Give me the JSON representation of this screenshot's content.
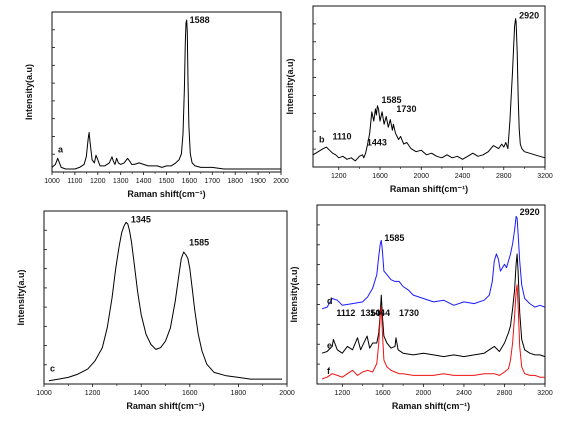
{
  "chart_data": [
    {
      "panel_label": "a",
      "type": "line",
      "xlabel": "Raman shift(cm⁻¹)",
      "ylabel": "Intensity(a.u)",
      "xlim": [
        1000,
        2000
      ],
      "xticks": [
        "1000",
        "1100",
        "1200",
        "1300",
        "1400",
        "1500",
        "1600",
        "1700",
        "1800",
        "1900",
        "2000"
      ],
      "yticks_labeled": false,
      "annotations": [
        {
          "text": "1588",
          "x": 1588,
          "y": 0.96
        }
      ],
      "series": [
        {
          "color": "#000000",
          "x": [
            1000,
            1015,
            1025,
            1040,
            1060,
            1080,
            1100,
            1120,
            1140,
            1150,
            1158,
            1162,
            1166,
            1175,
            1185,
            1192,
            1200,
            1210,
            1230,
            1250,
            1262,
            1268,
            1275,
            1282,
            1290,
            1300,
            1315,
            1330,
            1340,
            1348,
            1360,
            1380,
            1400,
            1420,
            1440,
            1460,
            1480,
            1500,
            1520,
            1540,
            1555,
            1565,
            1572,
            1578,
            1582,
            1585,
            1588,
            1591,
            1594,
            1598,
            1604,
            1612,
            1625,
            1650,
            1700,
            1750,
            1800,
            1850,
            1900,
            1950,
            2000
          ],
          "y": [
            0.03,
            0.05,
            0.09,
            0.03,
            0.02,
            0.02,
            0.02,
            0.03,
            0.05,
            0.1,
            0.22,
            0.26,
            0.2,
            0.08,
            0.06,
            0.11,
            0.08,
            0.04,
            0.04,
            0.06,
            0.1,
            0.07,
            0.05,
            0.09,
            0.06,
            0.05,
            0.06,
            0.09,
            0.07,
            0.05,
            0.05,
            0.06,
            0.05,
            0.04,
            0.04,
            0.04,
            0.03,
            0.04,
            0.04,
            0.06,
            0.08,
            0.12,
            0.25,
            0.55,
            0.85,
            0.98,
            1.0,
            0.92,
            0.6,
            0.3,
            0.12,
            0.06,
            0.04,
            0.03,
            0.03,
            0.02,
            0.02,
            0.02,
            0.02,
            0.02,
            0.02
          ]
        }
      ]
    },
    {
      "panel_label": "b",
      "type": "line",
      "xlabel": "Raman shift(cm⁻¹)",
      "ylabel": "Intensity(a.u)",
      "xlim": [
        950,
        3200
      ],
      "xticks": [
        "1200",
        "1600",
        "2000",
        "2400",
        "2800",
        "3200"
      ],
      "yticks_labeled": false,
      "annotations": [
        {
          "text": "1110",
          "x": 1110,
          "y": 0.16
        },
        {
          "text": "1443",
          "x": 1443,
          "y": 0.12
        },
        {
          "text": "1585",
          "x": 1585,
          "y": 0.4
        },
        {
          "text": "1730",
          "x": 1730,
          "y": 0.34
        },
        {
          "text": "2920",
          "x": 2920,
          "y": 0.95
        }
      ],
      "series": [
        {
          "color": "#000000",
          "x": [
            950,
            1000,
            1050,
            1080,
            1110,
            1140,
            1170,
            1200,
            1240,
            1280,
            1320,
            1360,
            1400,
            1430,
            1443,
            1460,
            1480,
            1500,
            1520,
            1540,
            1555,
            1565,
            1575,
            1585,
            1600,
            1620,
            1640,
            1660,
            1680,
            1700,
            1720,
            1730,
            1750,
            1780,
            1800,
            1830,
            1860,
            1900,
            1950,
            2000,
            2050,
            2100,
            2150,
            2200,
            2250,
            2300,
            2350,
            2400,
            2450,
            2500,
            2550,
            2600,
            2650,
            2700,
            2750,
            2780,
            2800,
            2820,
            2840,
            2860,
            2875,
            2885,
            2895,
            2905,
            2915,
            2920,
            2930,
            2940,
            2950,
            2960,
            2975,
            3000,
            3050,
            3100,
            3150,
            3200
          ],
          "y": [
            0.08,
            0.1,
            0.12,
            0.13,
            0.11,
            0.09,
            0.08,
            0.06,
            0.07,
            0.05,
            0.06,
            0.04,
            0.07,
            0.08,
            0.06,
            0.09,
            0.15,
            0.22,
            0.36,
            0.3,
            0.38,
            0.34,
            0.4,
            0.38,
            0.3,
            0.36,
            0.28,
            0.33,
            0.26,
            0.31,
            0.24,
            0.28,
            0.22,
            0.18,
            0.2,
            0.15,
            0.16,
            0.12,
            0.1,
            0.11,
            0.08,
            0.09,
            0.07,
            0.06,
            0.08,
            0.06,
            0.07,
            0.05,
            0.07,
            0.09,
            0.07,
            0.08,
            0.1,
            0.14,
            0.12,
            0.15,
            0.13,
            0.16,
            0.12,
            0.3,
            0.5,
            0.62,
            0.78,
            0.92,
            0.97,
            0.95,
            0.75,
            0.45,
            0.25,
            0.15,
            0.12,
            0.1,
            0.09,
            0.08,
            0.07,
            0.06
          ]
        }
      ]
    },
    {
      "panel_label": "c",
      "type": "line",
      "xlabel": "Raman shift(cm⁻¹)",
      "ylabel": "Intensity(a.u)",
      "xlim": [
        1000,
        2000
      ],
      "xticks": [
        "1000",
        "1200",
        "1400",
        "1600",
        "1800",
        "2000"
      ],
      "yticks_labeled": false,
      "annotations": [
        {
          "text": "1345",
          "x": 1345,
          "y": 0.96
        },
        {
          "text": "1585",
          "x": 1585,
          "y": 0.82
        }
      ],
      "series": [
        {
          "color": "#000000",
          "x": [
            1020,
            1060,
            1100,
            1140,
            1180,
            1210,
            1240,
            1260,
            1280,
            1295,
            1310,
            1320,
            1330,
            1338,
            1345,
            1352,
            1360,
            1372,
            1385,
            1400,
            1420,
            1440,
            1460,
            1480,
            1500,
            1520,
            1540,
            1555,
            1565,
            1575,
            1585,
            1592,
            1600,
            1610,
            1620,
            1635,
            1650,
            1670,
            1700,
            1750,
            1800,
            1850,
            1900,
            1950,
            1980
          ],
          "y": [
            0.02,
            0.03,
            0.04,
            0.06,
            0.09,
            0.14,
            0.22,
            0.34,
            0.52,
            0.7,
            0.84,
            0.92,
            0.96,
            0.98,
            0.97,
            0.93,
            0.86,
            0.72,
            0.56,
            0.42,
            0.3,
            0.24,
            0.21,
            0.22,
            0.26,
            0.34,
            0.5,
            0.66,
            0.76,
            0.8,
            0.78,
            0.76,
            0.7,
            0.58,
            0.45,
            0.3,
            0.2,
            0.12,
            0.07,
            0.05,
            0.04,
            0.03,
            0.03,
            0.03,
            0.03
          ]
        }
      ]
    },
    {
      "panel_label": "d e f",
      "type": "line",
      "xlabel": "Raman shift(cm⁻¹)",
      "ylabel": "Intensity(a.u)",
      "xlim": [
        950,
        3200
      ],
      "xticks": [
        "1200",
        "1600",
        "2000",
        "2400",
        "2800",
        "3200"
      ],
      "yticks_labeled": false,
      "annotations": [
        {
          "text": "1585",
          "x": 1585,
          "y": 0.82
        },
        {
          "text": "2920",
          "x": 2920,
          "y": 0.97
        },
        {
          "text": "1112",
          "x": 1112,
          "y": 0.38
        },
        {
          "text": "1350",
          "x": 1350,
          "y": 0.38
        },
        {
          "text": "1444",
          "x": 1444,
          "y": 0.38
        },
        {
          "text": "1730",
          "x": 1730,
          "y": 0.38
        }
      ],
      "series": [
        {
          "label": "d",
          "color": "#1a1aff",
          "x": [
            1000,
            1050,
            1100,
            1150,
            1200,
            1300,
            1400,
            1450,
            1500,
            1540,
            1560,
            1575,
            1585,
            1595,
            1610,
            1640,
            1680,
            1720,
            1760,
            1800,
            1850,
            1900,
            2000,
            2100,
            2200,
            2300,
            2400,
            2500,
            2600,
            2650,
            2680,
            2700,
            2720,
            2740,
            2760,
            2780,
            2800,
            2820,
            2840,
            2860,
            2880,
            2900,
            2915,
            2925,
            2935,
            2950,
            2970,
            3000,
            3050,
            3100,
            3150,
            3200
          ],
          "y": [
            0.44,
            0.45,
            0.5,
            0.49,
            0.46,
            0.47,
            0.48,
            0.51,
            0.56,
            0.64,
            0.75,
            0.82,
            0.84,
            0.78,
            0.66,
            0.64,
            0.61,
            0.6,
            0.6,
            0.57,
            0.55,
            0.52,
            0.5,
            0.48,
            0.49,
            0.46,
            0.48,
            0.47,
            0.49,
            0.52,
            0.6,
            0.72,
            0.76,
            0.73,
            0.66,
            0.68,
            0.7,
            0.68,
            0.72,
            0.76,
            0.82,
            0.9,
            0.98,
            0.97,
            0.88,
            0.72,
            0.58,
            0.5,
            0.47,
            0.45,
            0.46,
            0.45
          ]
        },
        {
          "label": "e",
          "color": "#000000",
          "x": [
            1000,
            1050,
            1100,
            1112,
            1150,
            1200,
            1250,
            1300,
            1350,
            1380,
            1420,
            1444,
            1470,
            1500,
            1540,
            1560,
            1575,
            1585,
            1595,
            1610,
            1640,
            1680,
            1720,
            1730,
            1750,
            1800,
            1900,
            2000,
            2100,
            2200,
            2300,
            2400,
            2500,
            2600,
            2700,
            2750,
            2800,
            2840,
            2860,
            2880,
            2900,
            2915,
            2925,
            2935,
            2950,
            2970,
            3000,
            3050,
            3100,
            3150,
            3200
          ],
          "y": [
            0.18,
            0.19,
            0.22,
            0.26,
            0.2,
            0.18,
            0.22,
            0.2,
            0.27,
            0.2,
            0.25,
            0.28,
            0.21,
            0.24,
            0.24,
            0.3,
            0.42,
            0.52,
            0.4,
            0.28,
            0.24,
            0.21,
            0.22,
            0.27,
            0.2,
            0.18,
            0.17,
            0.18,
            0.17,
            0.16,
            0.17,
            0.16,
            0.17,
            0.18,
            0.22,
            0.19,
            0.24,
            0.3,
            0.34,
            0.44,
            0.55,
            0.7,
            0.76,
            0.66,
            0.42,
            0.26,
            0.2,
            0.18,
            0.17,
            0.17,
            0.16
          ]
        },
        {
          "label": "f",
          "color": "#ee1111",
          "x": [
            1000,
            1050,
            1100,
            1150,
            1200,
            1250,
            1300,
            1350,
            1400,
            1450,
            1500,
            1540,
            1560,
            1575,
            1585,
            1595,
            1610,
            1640,
            1680,
            1720,
            1760,
            1800,
            1900,
            2000,
            2100,
            2200,
            2300,
            2400,
            2500,
            2600,
            2700,
            2750,
            2800,
            2840,
            2860,
            2880,
            2900,
            2915,
            2925,
            2935,
            2950,
            2970,
            3000,
            3050,
            3100,
            3150,
            3200
          ],
          "y": [
            0.03,
            0.04,
            0.06,
            0.05,
            0.04,
            0.06,
            0.08,
            0.05,
            0.07,
            0.08,
            0.07,
            0.12,
            0.24,
            0.4,
            0.45,
            0.3,
            0.14,
            0.1,
            0.08,
            0.07,
            0.06,
            0.06,
            0.05,
            0.05,
            0.05,
            0.06,
            0.05,
            0.05,
            0.05,
            0.06,
            0.06,
            0.05,
            0.07,
            0.09,
            0.14,
            0.24,
            0.4,
            0.54,
            0.58,
            0.46,
            0.22,
            0.1,
            0.06,
            0.05,
            0.05,
            0.04,
            0.04
          ]
        }
      ]
    }
  ]
}
